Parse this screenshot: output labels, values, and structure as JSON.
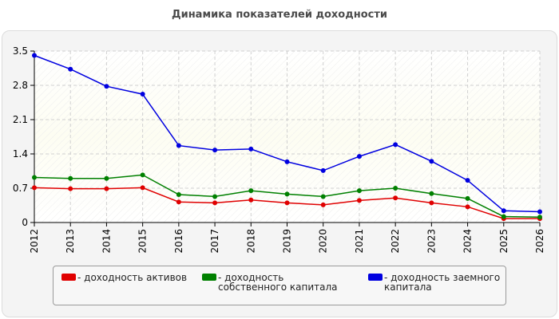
{
  "title": "Динамика показателей доходности",
  "chart_data": {
    "type": "line",
    "title": "Динамика показателей доходности",
    "xlabel": "",
    "ylabel": "",
    "x": [
      "2012",
      "2013",
      "2014",
      "2015",
      "2016",
      "2017",
      "2018",
      "2019",
      "2020",
      "2021",
      "2022",
      "2023",
      "2024",
      "2025",
      "2026"
    ],
    "ylim": [
      0,
      3.5
    ],
    "yticks": [
      "0",
      "0.7",
      "1.4",
      "2.1",
      "2.8",
      "3.5"
    ],
    "grid": true,
    "legend_position": "bottom",
    "series": [
      {
        "name": "- доходность активов",
        "color": "#e00000",
        "values": [
          0.71,
          0.69,
          0.69,
          0.71,
          0.42,
          0.4,
          0.46,
          0.4,
          0.36,
          0.45,
          0.5,
          0.4,
          0.32,
          0.08,
          0.08
        ]
      },
      {
        "name": "- доходность собственного капитала",
        "color": "#008000",
        "values": [
          0.92,
          0.9,
          0.9,
          0.97,
          0.57,
          0.53,
          0.65,
          0.58,
          0.53,
          0.65,
          0.7,
          0.59,
          0.49,
          0.12,
          0.11
        ]
      },
      {
        "name": "- доходность заемного капитала",
        "color": "#0000e0",
        "values": [
          3.41,
          3.13,
          2.78,
          2.62,
          1.57,
          1.48,
          1.5,
          1.24,
          1.06,
          1.35,
          1.59,
          1.25,
          0.86,
          0.24,
          0.22
        ]
      }
    ]
  }
}
